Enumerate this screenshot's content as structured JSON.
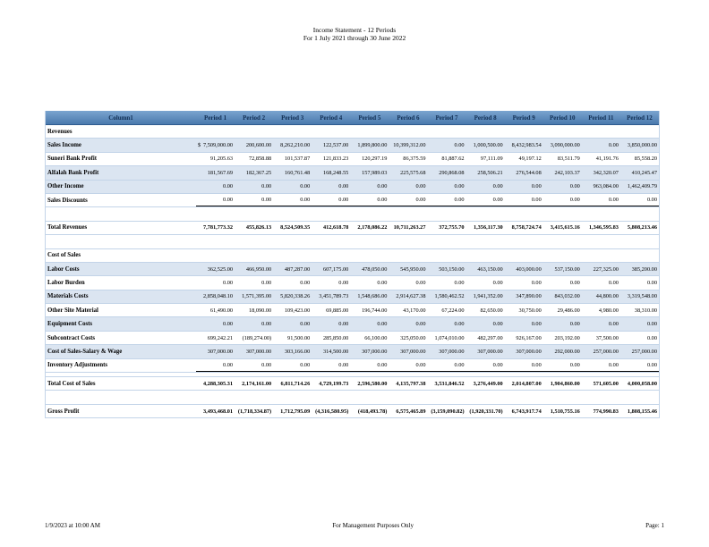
{
  "title": {
    "line1": "Income Statement - 12 Periods",
    "line2": "For 1 July 2021 through 30 June 2022"
  },
  "footer": {
    "left": "1/9/2023 at 10:00 AM",
    "center": "For Management Purposes Only",
    "right": "Page: 1"
  },
  "colors": {
    "header_bg_top": "#7aa4cf",
    "header_bg_bottom": "#4a79ad",
    "header_text": "#122f54",
    "row_stripe": "#dbe5f1",
    "grid_line": "#c3d4e8",
    "total_underline": "#000000"
  },
  "table": {
    "columns": [
      "Column1",
      "Period 1",
      "Period 2",
      "Period 3",
      "Period 4",
      "Period 5",
      "Period 6",
      "Period 7",
      "Period 8",
      "Period 9",
      "Period 10",
      "Period 11",
      "Period 12"
    ],
    "rows": [
      {
        "type": "section",
        "label": "Revenues"
      },
      {
        "type": "data",
        "label": "Sales Income",
        "shaded": true,
        "prefix": "$",
        "cells": [
          "7,509,000.00",
          "200,600.00",
          "8,262,210.00",
          "122,537.00",
          "1,899,800.00",
          "10,399,312.00",
          "0.00",
          "1,000,500.00",
          "8,432,983.54",
          "3,090,000.00",
          "0.00",
          "3,850,000.00"
        ]
      },
      {
        "type": "data",
        "label": "Suneri Bank Profit",
        "shaded": false,
        "cells": [
          "91,205.63",
          "72,858.88",
          "101,537.87",
          "121,833.23",
          "120,297.19",
          "86,375.59",
          "81,887.62",
          "97,111.09",
          "49,197.12",
          "83,511.79",
          "41,191.76",
          "85,558.20"
        ]
      },
      {
        "type": "data",
        "label": "Alfalah Bank Profit",
        "shaded": true,
        "cells": [
          "181,567.69",
          "182,367.25",
          "160,761.48",
          "168,248.55",
          "157,989.03",
          "225,575.68",
          "290,868.08",
          "258,506.21",
          "276,544.08",
          "242,103.37",
          "342,320.07",
          "410,245.47"
        ]
      },
      {
        "type": "data",
        "label": "Other Income",
        "shaded": true,
        "cells": [
          "0.00",
          "0.00",
          "0.00",
          "0.00",
          "0.00",
          "0.00",
          "0.00",
          "0.00",
          "0.00",
          "0.00",
          "963,084.00",
          "1,462,409.79"
        ]
      },
      {
        "type": "data",
        "label": "Sales Discounts",
        "shaded": false,
        "black_bottom": true,
        "cells": [
          "0.00",
          "0.00",
          "0.00",
          "0.00",
          "0.00",
          "0.00",
          "0.00",
          "0.00",
          "0.00",
          "0.00",
          "0.00",
          "0.00"
        ]
      },
      {
        "type": "blank"
      },
      {
        "type": "total",
        "label": "Total Revenues",
        "cells": [
          "7,781,773.32",
          "455,826.13",
          "8,524,509.35",
          "412,618.78",
          "2,178,086.22",
          "10,711,263.27",
          "372,755.70",
          "1,356,117.30",
          "8,758,724.74",
          "3,415,615.16",
          "1,346,595.83",
          "5,808,213.46"
        ]
      },
      {
        "type": "blank"
      },
      {
        "type": "section",
        "label": "Cost of Sales"
      },
      {
        "type": "data",
        "label": "Labor Costs",
        "shaded": true,
        "cells": [
          "362,525.00",
          "466,950.00",
          "487,287.00",
          "607,175.00",
          "478,050.00",
          "545,950.00",
          "503,150.00",
          "463,150.00",
          "403,000.00",
          "537,150.00",
          "227,325.00",
          "385,200.00"
        ]
      },
      {
        "type": "data",
        "label": "Labor Burden",
        "shaded": false,
        "cells": [
          "0.00",
          "0.00",
          "0.00",
          "0.00",
          "0.00",
          "0.00",
          "0.00",
          "0.00",
          "0.00",
          "0.00",
          "0.00",
          "0.00"
        ]
      },
      {
        "type": "data",
        "label": "Materials Costs",
        "shaded": true,
        "cells": [
          "2,858,048.10",
          "1,571,395.00",
          "5,820,338.26",
          "3,451,789.73",
          "1,548,686.00",
          "2,914,627.38",
          "1,580,462.52",
          "1,941,352.00",
          "347,890.00",
          "843,032.00",
          "44,800.00",
          "3,319,548.00"
        ]
      },
      {
        "type": "data",
        "label": "Other Site Material",
        "shaded": false,
        "cells": [
          "61,490.00",
          "18,090.00",
          "109,423.00",
          "69,885.00",
          "196,744.00",
          "43,170.00",
          "67,224.00",
          "82,650.00",
          "30,750.00",
          "29,486.00",
          "4,980.00",
          "38,310.00"
        ]
      },
      {
        "type": "data",
        "label": "Equipment Costs",
        "shaded": true,
        "cells": [
          "0.00",
          "0.00",
          "0.00",
          "0.00",
          "0.00",
          "0.00",
          "0.00",
          "0.00",
          "0.00",
          "0.00",
          "0.00",
          "0.00"
        ]
      },
      {
        "type": "data",
        "label": "Subcontract Costs",
        "shaded": false,
        "cells": [
          "699,242.21",
          "(189,274.00)",
          "91,500.00",
          "285,850.00",
          "66,100.00",
          "325,050.00",
          "1,074,010.00",
          "482,297.00",
          "926,167.00",
          "203,192.00",
          "37,500.00",
          "0.00"
        ]
      },
      {
        "type": "data",
        "label": "Cost of Sales-Salary & Wage",
        "shaded": true,
        "cells": [
          "307,000.00",
          "307,000.00",
          "303,166.00",
          "314,500.00",
          "307,000.00",
          "307,000.00",
          "307,000.00",
          "307,000.00",
          "307,000.00",
          "292,000.00",
          "257,000.00",
          "257,000.00"
        ]
      },
      {
        "type": "data",
        "label": "Inventory Adjustments",
        "shaded": false,
        "black_bottom": true,
        "cells": [
          "0.00",
          "0.00",
          "0.00",
          "0.00",
          "0.00",
          "0.00",
          "0.00",
          "0.00",
          "0.00",
          "0.00",
          "0.00",
          "0.00"
        ]
      },
      {
        "type": "blank_small"
      },
      {
        "type": "total",
        "label": "Total Cost of Sales",
        "cells": [
          "4,288,305.31",
          "2,174,161.00",
          "6,811,714.26",
          "4,729,199.73",
          "2,596,580.00",
          "4,135,797.38",
          "3,531,846.52",
          "3,276,449.00",
          "2,014,807.00",
          "1,904,860.00",
          "571,605.00",
          "4,000,058.00"
        ]
      },
      {
        "type": "blank"
      },
      {
        "type": "total",
        "label": "Gross Profit",
        "cells": [
          "3,493,468.01",
          "(1,718,334.87)",
          "1,712,795.09",
          "(4,316,580.95)",
          "(418,493.78)",
          "6,575,465.89",
          "(3,159,090.82)",
          "(1,920,331.70)",
          "6,743,917.74",
          "1,510,755.16",
          "774,990.83",
          "1,808,155.46"
        ]
      }
    ]
  }
}
